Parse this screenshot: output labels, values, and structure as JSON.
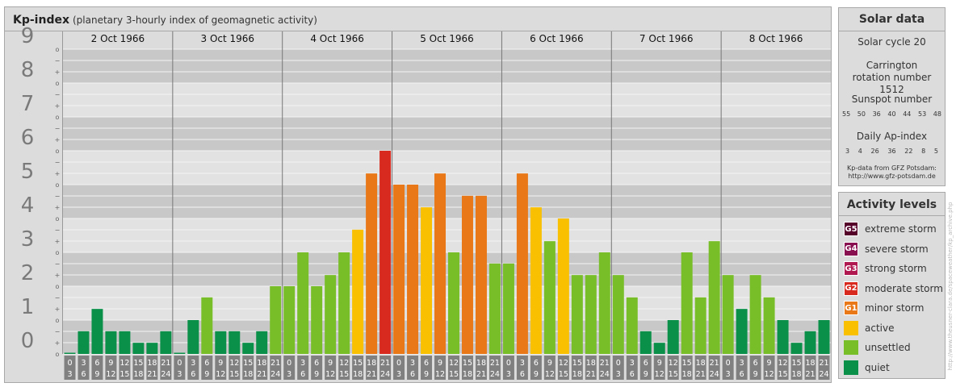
{
  "header": {
    "title": "Kp-index",
    "subtitle": "(planetary 3-hourly index of geomagnetic activity)"
  },
  "chart_data": {
    "type": "bar",
    "title": "Kp-index",
    "subtitle": "(planetary 3-hourly index of geomagnetic activity)",
    "ylim": [
      0,
      9
    ],
    "y_ticks": [
      "0",
      "1",
      "2",
      "3",
      "4",
      "5",
      "6",
      "7",
      "8",
      "9"
    ],
    "y_minor_ticks": [
      "o",
      "+",
      "−"
    ],
    "days": [
      "2 Oct 1966",
      "3 Oct 1966",
      "4 Oct 1966",
      "5 Oct 1966",
      "6 Oct 1966",
      "7 Oct 1966",
      "8 Oct 1966"
    ],
    "interval_start_labels": [
      "0",
      "3",
      "6",
      "9",
      "12",
      "15",
      "18",
      "21"
    ],
    "interval_end_labels": [
      "3",
      "6",
      "9",
      "12",
      "15",
      "18",
      "21",
      "24"
    ],
    "values": [
      0.0,
      0.67,
      1.33,
      0.67,
      0.67,
      0.33,
      0.33,
      0.67,
      0.0,
      1.0,
      1.67,
      0.67,
      0.67,
      0.33,
      0.67,
      2.0,
      2.0,
      3.0,
      2.0,
      2.33,
      3.0,
      3.67,
      5.33,
      6.0,
      5.0,
      5.0,
      4.33,
      5.33,
      3.0,
      4.67,
      4.67,
      2.67,
      2.67,
      5.33,
      4.33,
      3.33,
      4.0,
      2.33,
      2.33,
      3.0,
      2.33,
      1.67,
      0.67,
      0.33,
      1.0,
      3.0,
      1.67,
      3.33,
      2.33,
      1.33,
      2.33,
      1.67,
      1.0,
      0.33,
      0.67,
      1.0
    ],
    "level_colors": {
      "quiet": "#0a9048",
      "unsettled": "#78be28",
      "active": "#f8c000",
      "minor_storm": "#e87818",
      "moderate_storm": "#d82a1e",
      "strong_storm": "#b01850",
      "severe_storm": "#881050",
      "extreme_storm": "#540028"
    },
    "grid": true
  },
  "solar": {
    "title": "Solar data",
    "cycle": "Solar cycle 20",
    "carrington": "Carrington rotation number 1512",
    "sunspot_label": "Sunspot number",
    "sunspot_numbers": [
      "55",
      "50",
      "36",
      "40",
      "44",
      "53",
      "48"
    ],
    "ap_label": "Daily Ap-index",
    "ap_values": [
      "3",
      "4",
      "26",
      "36",
      "22",
      "8",
      "5"
    ],
    "source_line1": "Kp-data from GFZ Potsdam:",
    "source_line2": "http://www.gfz-potsdam.de"
  },
  "legend": {
    "title": "Activity levels",
    "items": [
      {
        "code": "G5",
        "label": "extreme storm",
        "color": "#540028"
      },
      {
        "code": "G4",
        "label": "severe storm",
        "color": "#881050"
      },
      {
        "code": "G3",
        "label": "strong storm",
        "color": "#b01850"
      },
      {
        "code": "G2",
        "label": "moderate storm",
        "color": "#d82a1e"
      },
      {
        "code": "G1",
        "label": "minor storm",
        "color": "#e87818"
      },
      {
        "code": "",
        "label": "active",
        "color": "#f8c000"
      },
      {
        "code": "",
        "label": "unsettled",
        "color": "#78be28"
      },
      {
        "code": "",
        "label": "quiet",
        "color": "#0a9048"
      }
    ]
  },
  "watermark": "http://www.theusner-clara.de/spaceweather/kp_archive.php"
}
